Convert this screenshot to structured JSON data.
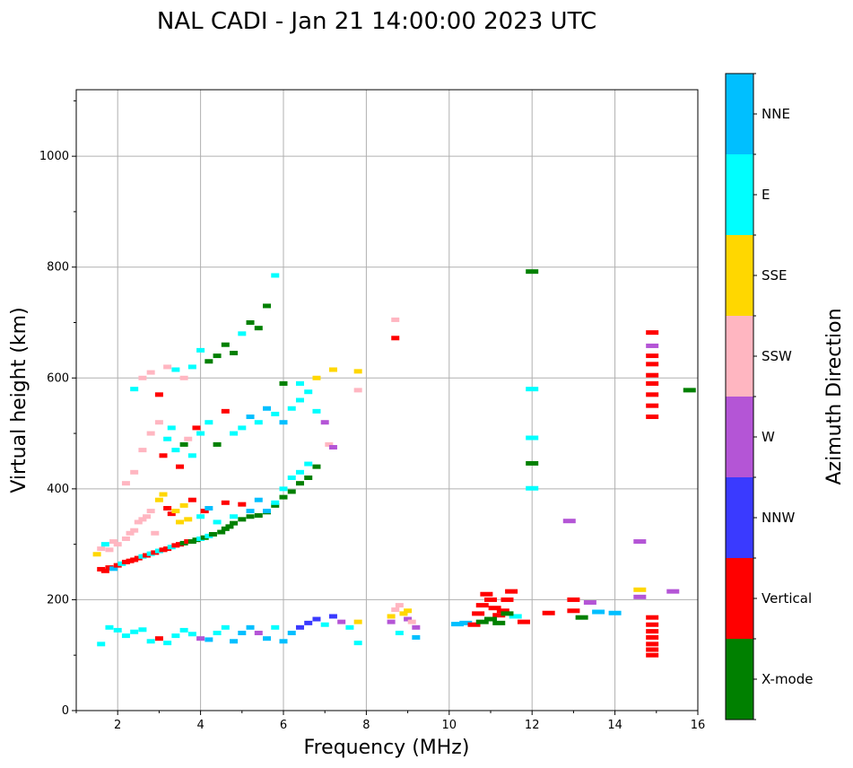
{
  "chart_data": {
    "type": "scatter",
    "title": "NAL CADI - Jan 21 14:00:00 2023 UTC",
    "xlabel": "Frequency (MHz)",
    "ylabel": "Virtual height (km)",
    "xlim": [
      1,
      16
    ],
    "ylim": [
      0,
      1120
    ],
    "xticks": [
      2,
      4,
      6,
      8,
      10,
      12,
      14,
      16
    ],
    "yticks": [
      0,
      200,
      400,
      600,
      800,
      1000
    ],
    "grid": true,
    "colorbar": {
      "title": "Azimuth Direction",
      "categories": [
        "X-mode",
        "Vertical",
        "NNW",
        "W",
        "SSW",
        "SSE",
        "E",
        "NNE"
      ],
      "colors": [
        "#008000",
        "#ff0000",
        "#3a3aff",
        "#b455d6",
        "#ffb6c1",
        "#ffd700",
        "#00ffff",
        "#00bfff"
      ]
    },
    "points": [
      [
        1.6,
        255,
        1
      ],
      [
        1.7,
        252,
        1
      ],
      [
        1.8,
        258,
        1
      ],
      [
        1.9,
        256,
        7
      ],
      [
        2.0,
        262,
        1
      ],
      [
        2.1,
        265,
        6
      ],
      [
        2.2,
        268,
        1
      ],
      [
        2.3,
        270,
        1
      ],
      [
        2.4,
        272,
        1
      ],
      [
        2.5,
        275,
        1
      ],
      [
        2.6,
        278,
        6
      ],
      [
        2.7,
        280,
        1
      ],
      [
        2.8,
        283,
        6
      ],
      [
        2.9,
        285,
        1
      ],
      [
        3.0,
        288,
        6
      ],
      [
        3.1,
        290,
        1
      ],
      [
        3.2,
        292,
        1
      ],
      [
        3.3,
        295,
        6
      ],
      [
        3.4,
        298,
        1
      ],
      [
        3.5,
        300,
        1
      ],
      [
        3.6,
        302,
        0
      ],
      [
        3.7,
        305,
        1
      ],
      [
        3.8,
        305,
        0
      ],
      [
        3.9,
        308,
        0
      ],
      [
        4.0,
        310,
        6
      ],
      [
        4.1,
        312,
        0
      ],
      [
        4.2,
        315,
        6
      ],
      [
        4.3,
        318,
        0
      ],
      [
        4.5,
        322,
        0
      ],
      [
        4.6,
        328,
        0
      ],
      [
        4.7,
        332,
        0
      ],
      [
        4.8,
        338,
        0
      ],
      [
        5.0,
        345,
        0
      ],
      [
        5.2,
        350,
        0
      ],
      [
        5.4,
        352,
        0
      ],
      [
        5.6,
        358,
        0
      ],
      [
        5.8,
        370,
        0
      ],
      [
        6.0,
        385,
        0
      ],
      [
        6.2,
        395,
        0
      ],
      [
        6.4,
        410,
        0
      ],
      [
        6.6,
        420,
        0
      ],
      [
        6.8,
        440,
        0
      ],
      [
        1.5,
        282,
        5
      ],
      [
        1.6,
        292,
        4
      ],
      [
        1.7,
        300,
        6
      ],
      [
        1.8,
        290,
        4
      ],
      [
        1.9,
        305,
        4
      ],
      [
        2.0,
        300,
        4
      ],
      [
        2.2,
        310,
        4
      ],
      [
        2.3,
        320,
        4
      ],
      [
        2.4,
        325,
        4
      ],
      [
        2.5,
        340,
        4
      ],
      [
        2.6,
        345,
        4
      ],
      [
        2.7,
        350,
        4
      ],
      [
        2.8,
        360,
        4
      ],
      [
        2.9,
        320,
        4
      ],
      [
        3.0,
        380,
        5
      ],
      [
        3.1,
        390,
        5
      ],
      [
        3.2,
        365,
        1
      ],
      [
        3.3,
        355,
        1
      ],
      [
        3.4,
        360,
        5
      ],
      [
        3.5,
        340,
        5
      ],
      [
        3.6,
        370,
        5
      ],
      [
        3.7,
        345,
        5
      ],
      [
        3.8,
        380,
        1
      ],
      [
        4.0,
        350,
        6
      ],
      [
        4.1,
        360,
        1
      ],
      [
        4.2,
        365,
        7
      ],
      [
        4.4,
        340,
        6
      ],
      [
        4.6,
        375,
        1
      ],
      [
        4.8,
        350,
        6
      ],
      [
        5.0,
        372,
        1
      ],
      [
        5.2,
        360,
        7
      ],
      [
        5.4,
        380,
        7
      ],
      [
        5.6,
        360,
        7
      ],
      [
        5.8,
        375,
        6
      ],
      [
        6.0,
        400,
        6
      ],
      [
        6.2,
        420,
        6
      ],
      [
        6.4,
        430,
        6
      ],
      [
        6.6,
        445,
        6
      ],
      [
        2.2,
        410,
        4
      ],
      [
        2.4,
        430,
        4
      ],
      [
        2.6,
        470,
        4
      ],
      [
        2.8,
        500,
        4
      ],
      [
        3.0,
        520,
        4
      ],
      [
        3.1,
        460,
        1
      ],
      [
        3.2,
        490,
        6
      ],
      [
        3.3,
        510,
        6
      ],
      [
        3.4,
        470,
        6
      ],
      [
        3.5,
        440,
        1
      ],
      [
        3.6,
        480,
        0
      ],
      [
        3.7,
        490,
        4
      ],
      [
        3.8,
        460,
        6
      ],
      [
        3.9,
        510,
        1
      ],
      [
        4.0,
        500,
        6
      ],
      [
        4.2,
        520,
        6
      ],
      [
        4.4,
        480,
        0
      ],
      [
        4.6,
        540,
        1
      ],
      [
        4.8,
        500,
        6
      ],
      [
        5.0,
        510,
        6
      ],
      [
        5.2,
        530,
        7
      ],
      [
        5.4,
        520,
        6
      ],
      [
        5.6,
        545,
        7
      ],
      [
        5.8,
        535,
        6
      ],
      [
        6.0,
        520,
        7
      ],
      [
        6.2,
        545,
        6
      ],
      [
        6.4,
        560,
        6
      ],
      [
        6.6,
        575,
        6
      ],
      [
        6.8,
        540,
        6
      ],
      [
        7.0,
        520,
        3
      ],
      [
        7.1,
        480,
        4
      ],
      [
        7.2,
        475,
        3
      ],
      [
        2.4,
        580,
        6
      ],
      [
        2.6,
        600,
        4
      ],
      [
        2.8,
        610,
        4
      ],
      [
        3.0,
        570,
        1
      ],
      [
        3.2,
        620,
        4
      ],
      [
        3.4,
        615,
        6
      ],
      [
        3.6,
        600,
        4
      ],
      [
        3.8,
        620,
        6
      ],
      [
        4.0,
        650,
        6
      ],
      [
        4.2,
        630,
        0
      ],
      [
        4.4,
        640,
        0
      ],
      [
        4.6,
        660,
        0
      ],
      [
        4.8,
        645,
        0
      ],
      [
        5.0,
        680,
        6
      ],
      [
        5.2,
        700,
        0
      ],
      [
        5.4,
        690,
        0
      ],
      [
        5.6,
        730,
        0
      ],
      [
        5.8,
        785,
        6
      ],
      [
        6.0,
        590,
        0
      ],
      [
        6.4,
        590,
        6
      ],
      [
        6.8,
        600,
        5
      ],
      [
        7.2,
        615,
        5
      ],
      [
        7.8,
        612,
        5
      ],
      [
        7.8,
        578,
        4
      ],
      [
        1.6,
        120,
        6
      ],
      [
        1.8,
        150,
        6
      ],
      [
        2.0,
        145,
        6
      ],
      [
        2.2,
        135,
        6
      ],
      [
        2.4,
        142,
        6
      ],
      [
        2.6,
        146,
        6
      ],
      [
        2.8,
        125,
        6
      ],
      [
        3.0,
        130,
        1
      ],
      [
        3.2,
        122,
        6
      ],
      [
        3.4,
        135,
        6
      ],
      [
        3.6,
        145,
        6
      ],
      [
        3.8,
        138,
        6
      ],
      [
        4.0,
        130,
        3
      ],
      [
        4.2,
        128,
        7
      ],
      [
        4.4,
        140,
        6
      ],
      [
        4.6,
        150,
        6
      ],
      [
        4.8,
        125,
        7
      ],
      [
        5.0,
        140,
        7
      ],
      [
        5.2,
        150,
        7
      ],
      [
        5.4,
        140,
        3
      ],
      [
        5.6,
        130,
        7
      ],
      [
        5.8,
        150,
        6
      ],
      [
        6.0,
        125,
        7
      ],
      [
        6.2,
        140,
        7
      ],
      [
        6.4,
        150,
        2
      ],
      [
        6.6,
        158,
        2
      ],
      [
        6.8,
        165,
        2
      ],
      [
        7.0,
        155,
        6
      ],
      [
        7.2,
        170,
        2
      ],
      [
        7.4,
        160,
        3
      ],
      [
        7.6,
        150,
        6
      ],
      [
        7.8,
        160,
        5
      ],
      [
        7.8,
        122,
        6
      ],
      [
        8.6,
        170,
        5
      ],
      [
        8.7,
        182,
        4
      ],
      [
        8.8,
        190,
        4
      ],
      [
        8.9,
        175,
        5
      ],
      [
        9.0,
        165,
        3
      ],
      [
        9.1,
        160,
        4
      ],
      [
        9.2,
        150,
        3
      ],
      [
        9.2,
        132,
        7
      ],
      [
        8.6,
        160,
        3
      ],
      [
        8.8,
        140,
        6
      ],
      [
        9.0,
        180,
        5
      ],
      [
        10.2,
        156,
        7
      ],
      [
        10.4,
        158,
        7
      ],
      [
        10.6,
        155,
        1
      ],
      [
        10.7,
        175,
        1
      ],
      [
        10.8,
        190,
        1
      ],
      [
        10.9,
        210,
        1
      ],
      [
        11.0,
        200,
        1
      ],
      [
        11.1,
        185,
        1
      ],
      [
        11.2,
        172,
        1
      ],
      [
        11.3,
        180,
        1
      ],
      [
        11.4,
        200,
        1
      ],
      [
        11.5,
        215,
        1
      ],
      [
        11.6,
        170,
        6
      ],
      [
        11.8,
        160,
        1
      ],
      [
        10.8,
        160,
        0
      ],
      [
        11.0,
        165,
        0
      ],
      [
        11.2,
        158,
        0
      ],
      [
        11.4,
        175,
        0
      ],
      [
        12.0,
        792,
        0
      ],
      [
        12.0,
        580,
        6
      ],
      [
        12.0,
        492,
        6
      ],
      [
        12.0,
        446,
        0
      ],
      [
        12.0,
        401,
        6
      ],
      [
        12.4,
        176,
        1
      ],
      [
        12.9,
        342,
        3
      ],
      [
        13.0,
        180,
        1
      ],
      [
        13.0,
        200,
        1
      ],
      [
        13.2,
        168,
        0
      ],
      [
        13.4,
        195,
        3
      ],
      [
        13.6,
        178,
        7
      ],
      [
        14.0,
        176,
        7
      ],
      [
        14.6,
        305,
        3
      ],
      [
        14.6,
        218,
        5
      ],
      [
        14.6,
        205,
        3
      ],
      [
        15.4,
        215,
        3
      ],
      [
        15.8,
        578,
        0
      ],
      [
        14.9,
        100,
        1
      ],
      [
        14.9,
        110,
        1
      ],
      [
        14.9,
        120,
        1
      ],
      [
        14.9,
        132,
        1
      ],
      [
        14.9,
        143,
        1
      ],
      [
        14.9,
        155,
        1
      ],
      [
        14.9,
        168,
        1
      ],
      [
        14.9,
        530,
        1
      ],
      [
        14.9,
        550,
        1
      ],
      [
        14.9,
        570,
        1
      ],
      [
        14.9,
        590,
        1
      ],
      [
        14.9,
        605,
        1
      ],
      [
        14.9,
        625,
        1
      ],
      [
        14.9,
        640,
        1
      ],
      [
        14.9,
        658,
        3
      ],
      [
        14.9,
        682,
        1
      ],
      [
        8.7,
        672,
        1
      ],
      [
        8.7,
        705,
        4
      ]
    ]
  }
}
